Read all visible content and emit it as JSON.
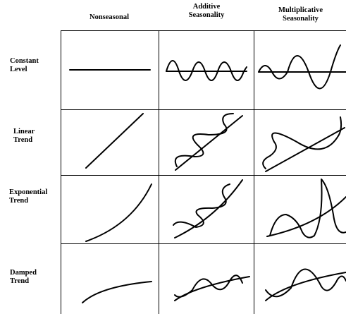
{
  "columns": {
    "nonseasonal": "Nonseasonal",
    "additive": {
      "line1": "Additive",
      "line2": "Seasonality"
    },
    "multiplicative": {
      "line1": "Multiplicative",
      "line2": "Seasonality"
    }
  },
  "rows": {
    "constant": {
      "line1": "Constant",
      "line2": "Level"
    },
    "linear": {
      "line1": "Linear",
      "line2": "Trend"
    },
    "exponential": {
      "line1": "Exponential",
      "line2": "Trend"
    },
    "damped": {
      "line1": "Damped",
      "line2": "Trend"
    }
  }
}
